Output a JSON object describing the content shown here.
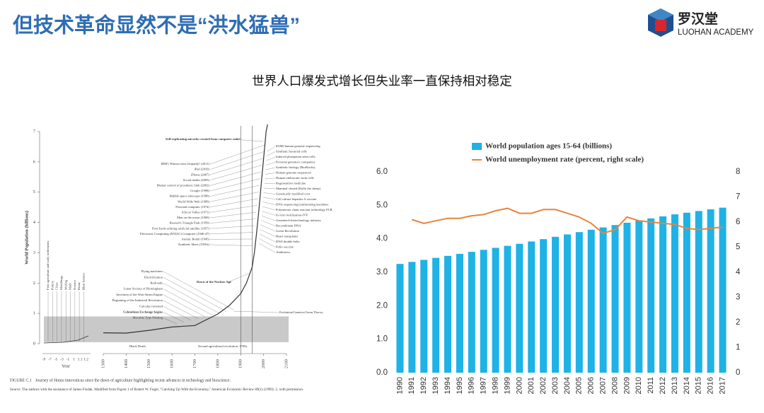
{
  "header": {
    "title": "但技术革命显然不是“洪水猛兽”",
    "logo_name": "罗汉堂",
    "logo_sub": "LUOHAN ACADEMY",
    "subtitle": "世界人口爆发式增长但失业率一直保持相对稳定"
  },
  "chart_data": [
    {
      "type": "line",
      "ylabel": "World Population (billions)",
      "xlabel": "Year",
      "x": [
        1300,
        1400,
        1500,
        1600,
        1700,
        1750,
        1800,
        1850,
        1900,
        1925,
        1950,
        1960,
        1970,
        1980,
        1990,
        2000,
        2011
      ],
      "values": [
        0.36,
        0.35,
        0.44,
        0.55,
        0.6,
        0.79,
        0.98,
        1.26,
        1.65,
        2.0,
        2.52,
        3.02,
        3.7,
        4.44,
        5.3,
        6.1,
        7.0
      ],
      "color": "#333333",
      "xlim": [
        1300,
        2100
      ],
      "xticks": [
        1300,
        1400,
        1500,
        1600,
        1700,
        1800,
        1900,
        2000,
        2100
      ],
      "ylim": [
        0,
        7
      ],
      "yticks": [
        0,
        1,
        2,
        3,
        4,
        5,
        6,
        7
      ],
      "shaded_range": [
        0.05,
        0.9
      ],
      "vlines": [
        1900,
        1950
      ],
      "inset_categories": [
        "-9",
        "-7",
        "-5",
        "-3",
        "-1",
        "1",
        "1.1",
        "1.2"
      ],
      "inset_labels": [
        "First agriculture and early settlements",
        "Pottery",
        "Cities",
        "Metallurgy",
        "Writing",
        "Math",
        "Science",
        "Rome",
        "Blast furnace"
      ],
      "top_note": "Self-replicating microbe created from computer code?",
      "tech_labels": [
        "IBM's Watson wins Jeopardy! (2011)",
        "iPad (2010)",
        "iPhone (2007)",
        "Social media (2003)",
        "Mental control of prosthetic limb (2002)",
        "Google (1998)",
        "Hubble space telescope (1990)",
        "World Wide Web (1989)",
        "Personal computer (1974)",
        "Silicon Valley (1971)",
        "Man on the moon (1969)",
        "Research Triangle Park (1959)",
        "First Earth-orbiting artificial satellite (1957)",
        "Electronic Computing (ENIAC) Computer (1946-47)",
        "Atomic Bomb (1945)",
        "Synthetic fibers (1930s)"
      ],
      "bio_labels": [
        "$1000 human genome sequencing",
        "Synthetic bacterial cells",
        "Induced pluripotent stem cells",
        "Personal genomics companies",
        "Synthetic biology (BioBricks)",
        "Human genome sequenced",
        "Human embryonic stem cells",
        "Regenerative medicine",
        "Mammal cloned (Dolly the sheep)",
        "Genetically modified corn",
        "Cell culture hepatitis A vaccine",
        "DNA sequencing/synthesizing machines",
        "Polymerase chain reaction technology PCR",
        "In vitro fertilization-IVF",
        "Genentech-biotechnology industry",
        "Recombinant DNA",
        "Green Revolution",
        "Heart transplants",
        "DNA double helix",
        "Polio vaccine",
        "Antibiotics"
      ],
      "early_labels": [
        "Flying machines",
        "Electrification",
        "Railroads",
        "Lunar Society of Birmingham",
        "Invention of the Watt Steam Engine",
        "Beginning of the Industrial Revolution",
        "Calculus invented",
        "Columbian Exchange begins",
        "Movable Type Printing"
      ],
      "nuclear_note": "Dawn of the Nuclear Age",
      "evolution_note": "Evolution/Genetics/Germ Theory",
      "black_death": "Black Death",
      "agri_note": "Second agricultural revolution: 1700s",
      "caption_label": "FIGURE C.1",
      "caption": "Journey of Homo innovaticus since the dawn of agriculture highlighting recent advances in technology and bioscience.",
      "source": "Source: The authors with the assistance of James Fisdak. Modified from Figure 1 of Robert W. Fogel, \"Catching Up With the Economy,\" American Economic Review 89(1) (1999): 2, with permission."
    },
    {
      "type": "bar",
      "categories": [
        "1990",
        "1991",
        "1992",
        "1993",
        "1994",
        "1995",
        "1996",
        "1997",
        "1998",
        "1999",
        "2000",
        "2001",
        "2002",
        "2003",
        "2004",
        "2005",
        "2006",
        "2007",
        "2008",
        "2009",
        "2010",
        "2011",
        "2012",
        "2013",
        "2014",
        "2015",
        "2016",
        "2017"
      ],
      "series": [
        {
          "name": "World population ages 15-64 (billions)",
          "color": "#1fb2e6",
          "type": "bar",
          "values": [
            3.25,
            3.31,
            3.37,
            3.43,
            3.49,
            3.55,
            3.61,
            3.67,
            3.73,
            3.79,
            3.85,
            3.92,
            3.99,
            4.06,
            4.13,
            4.2,
            4.27,
            4.34,
            4.41,
            4.48,
            4.55,
            4.61,
            4.67,
            4.73,
            4.78,
            4.83,
            4.88,
            4.93
          ]
        },
        {
          "name": "World unemployment rate (percent, right scale)",
          "color": "#e8843c",
          "type": "line",
          "axis": "y2",
          "values": [
            null,
            6.1,
            5.95,
            6.05,
            6.15,
            6.15,
            6.25,
            6.3,
            6.45,
            6.55,
            6.35,
            6.35,
            6.5,
            6.5,
            6.35,
            6.2,
            5.95,
            5.55,
            5.7,
            6.2,
            6.05,
            6.0,
            5.95,
            5.9,
            5.75,
            5.7,
            5.75,
            5.8
          ]
        }
      ],
      "ylim": [
        0,
        6
      ],
      "yticks": [
        {
          "value": 0,
          "label": "0.0"
        },
        {
          "value": 1,
          "label": "1.0"
        },
        {
          "value": 2,
          "label": "2.0"
        },
        {
          "value": 3,
          "label": "3.0"
        },
        {
          "value": 4,
          "label": "4.0"
        },
        {
          "value": 5,
          "label": "5.0"
        },
        {
          "value": 6,
          "label": "6.0"
        }
      ],
      "y2lim": [
        0,
        8
      ],
      "y2ticks": [
        0,
        1,
        2,
        3,
        4,
        5,
        6,
        7,
        8
      ],
      "legend": "top"
    }
  ]
}
